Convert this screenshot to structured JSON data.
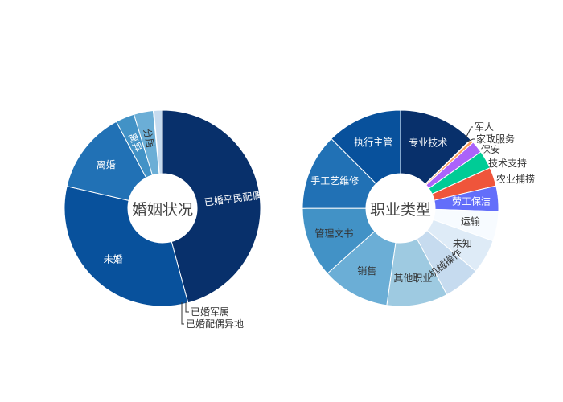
{
  "chart_data": [
    {
      "type": "pie",
      "hole": true,
      "center_label": "婚姻状况",
      "slices": [
        {
          "label": "已婚平民配偶",
          "value": 45.8,
          "color": "#08306b",
          "text_color": "#ffffff"
        },
        {
          "label": "未婚",
          "value": 32.8,
          "color": "#08519c",
          "text_color": "#ffffff"
        },
        {
          "label": "离婚",
          "value": 13.6,
          "color": "#2171b5",
          "text_color": "#ffffff"
        },
        {
          "label": "离异",
          "value": 3.1,
          "color": "#4292c6",
          "text_color": "#ffffff"
        },
        {
          "label": "分居",
          "value": 3.2,
          "color": "#6baed6",
          "text_color": "#333333"
        },
        {
          "label": "已婚军属",
          "value": 0.1,
          "color": "#9ecae1",
          "text_color": "#333333"
        },
        {
          "label": "已婚配偶异地",
          "value": 1.4,
          "color": "#c6dbef",
          "text_color": "#333333"
        }
      ]
    },
    {
      "type": "pie",
      "hole": true,
      "center_label": "职业类型",
      "slices": [
        {
          "label": "专业技术",
          "value": 12.7,
          "color": "#08306b",
          "text_color": "#ffffff"
        },
        {
          "label": "军人",
          "value": 0.1,
          "color": "#fecb52",
          "text_color": "#333333"
        },
        {
          "label": "家政服务",
          "value": 0.5,
          "color": "#ffa15a",
          "text_color": "#333333"
        },
        {
          "label": "保安",
          "value": 2.0,
          "color": "#ab63fa",
          "text_color": "#333333"
        },
        {
          "label": "技术支持",
          "value": 3.0,
          "color": "#00cc96",
          "text_color": "#333333"
        },
        {
          "label": "农业捕捞",
          "value": 3.1,
          "color": "#ef553b",
          "text_color": "#333333"
        },
        {
          "label": "劳工保洁",
          "value": 4.2,
          "color": "#636efa",
          "text_color": "#ffffff"
        },
        {
          "label": "运输",
          "value": 4.9,
          "color": "#f7fbff",
          "text_color": "#333333"
        },
        {
          "label": "未知",
          "value": 5.7,
          "color": "#deebf7",
          "text_color": "#333333"
        },
        {
          "label": "机械操作",
          "value": 6.1,
          "color": "#c6dbef",
          "text_color": "#333333"
        },
        {
          "label": "其他职业",
          "value": 10.1,
          "color": "#9ecae1",
          "text_color": "#333333"
        },
        {
          "label": "销售",
          "value": 11.2,
          "color": "#6baed6",
          "text_color": "#333333"
        },
        {
          "label": "管理文书",
          "value": 11.6,
          "color": "#4292c6",
          "text_color": "#333333"
        },
        {
          "label": "手工艺维修",
          "value": 12.6,
          "color": "#2171b5",
          "text_color": "#ffffff"
        },
        {
          "label": "执行主管",
          "value": 12.5,
          "color": "#08519c",
          "text_color": "#ffffff"
        }
      ]
    }
  ]
}
